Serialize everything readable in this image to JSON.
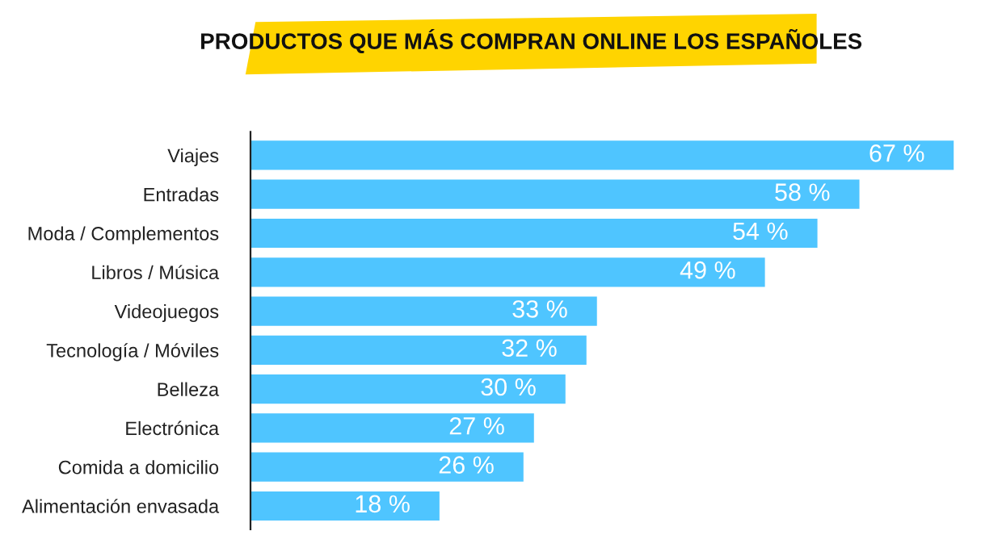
{
  "chart_data": {
    "type": "bar",
    "orientation": "horizontal",
    "title": "PRODUCTOS QUE MÁS COMPRAN ONLINE LOS ESPAÑOLES",
    "categories": [
      "Viajes",
      "Entradas",
      "Moda / Complementos",
      "Libros / Música",
      "Videojuegos",
      "Tecnología / Móviles",
      "Belleza",
      "Electrónica",
      "Comida a domicilio",
      "Alimentación envasada"
    ],
    "values": [
      67,
      58,
      54,
      49,
      33,
      32,
      30,
      27,
      26,
      18
    ],
    "value_labels": [
      "67 %",
      "58 %",
      "54 %",
      "49 %",
      "33 %",
      "32 %",
      "30 %",
      "27 %",
      "26 %",
      "18 %"
    ],
    "color": "#4fc5ff",
    "grid": false,
    "legend": false
  }
}
